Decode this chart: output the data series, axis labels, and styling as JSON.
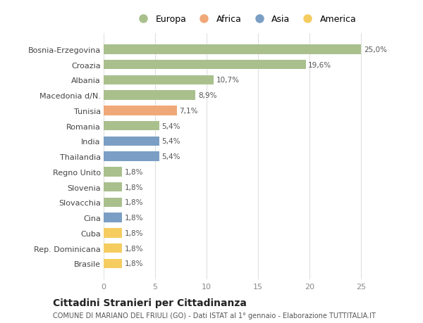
{
  "categories": [
    "Bosnia-Erzegovina",
    "Croazia",
    "Albania",
    "Macedonia d/N.",
    "Tunisia",
    "Romania",
    "India",
    "Thailandia",
    "Regno Unito",
    "Slovenia",
    "Slovacchia",
    "Cina",
    "Cuba",
    "Rep. Dominicana",
    "Brasile"
  ],
  "values": [
    25.0,
    19.6,
    10.7,
    8.9,
    7.1,
    5.4,
    5.4,
    5.4,
    1.8,
    1.8,
    1.8,
    1.8,
    1.8,
    1.8,
    1.8
  ],
  "labels": [
    "25,0%",
    "19,6%",
    "10,7%",
    "8,9%",
    "7,1%",
    "5,4%",
    "5,4%",
    "5,4%",
    "1,8%",
    "1,8%",
    "1,8%",
    "1,8%",
    "1,8%",
    "1,8%",
    "1,8%"
  ],
  "colors": [
    "#adc eighteen",
    "#a9c08d",
    "#a9c08d",
    "#a9c08d",
    "#f0a878",
    "#a9c08d",
    "#7b9fc4",
    "#7b9fc4",
    "#a9c08d",
    "#a9c08d",
    "#a9c08d",
    "#7b9fc4",
    "#f5cc60",
    "#f5cc60",
    "#f5cc60"
  ],
  "legend_labels": [
    "Europa",
    "Africa",
    "Asia",
    "America"
  ],
  "legend_colors": [
    "#a9c08d",
    "#f0a878",
    "#7b9fc4",
    "#f5cc60"
  ],
  "title": "Cittadini Stranieri per Cittadinanza",
  "subtitle": "COMUNE DI MARIANO DEL FRIULI (GO) - Dati ISTAT al 1° gennaio - Elaborazione TUTTITALIA.IT",
  "xlim": [
    0,
    27.5
  ],
  "xticks": [
    0,
    5,
    10,
    15,
    20,
    25
  ],
  "background_color": "#ffffff",
  "grid_color": "#e0e0e0"
}
